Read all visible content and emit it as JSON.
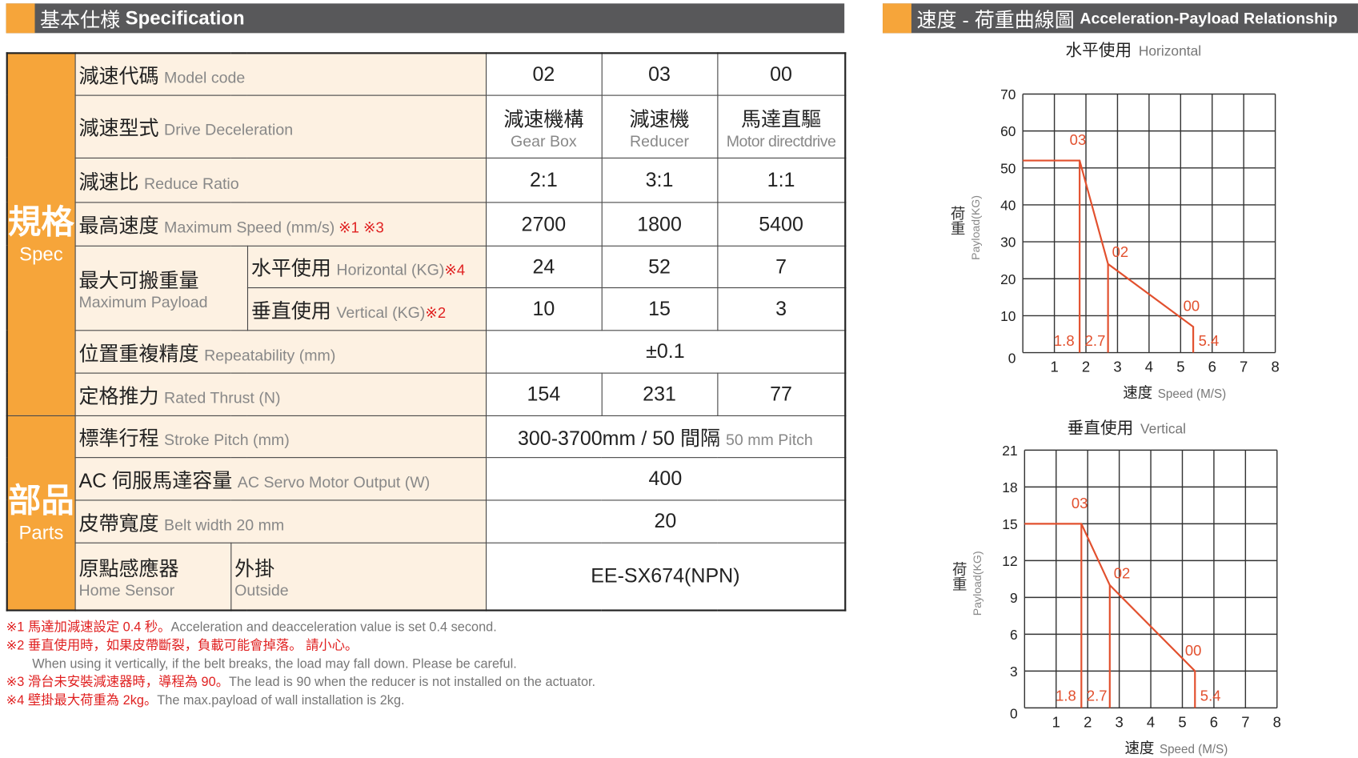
{
  "spec_header": {
    "zh": "基本仕様",
    "en": "Specification"
  },
  "chart_header": {
    "zh": "速度 - 荷重曲線圖",
    "en": "Acceleration-Payload Relationship"
  },
  "sections": {
    "spec": {
      "zh": "規格",
      "en": "Spec"
    },
    "parts": {
      "zh": "部品",
      "en": "Parts"
    }
  },
  "rows": {
    "model": {
      "zh": "減速代碼",
      "en": "Model code",
      "values": [
        "02",
        "03",
        "00"
      ]
    },
    "drive": {
      "zh": "減速型式",
      "en": "Drive Deceleration",
      "values": [
        {
          "zh": "減速機構",
          "en": "Gear Box"
        },
        {
          "zh": "減速機",
          "en": "Reducer"
        },
        {
          "zh": "馬達直驅",
          "en": "Motor directdrive"
        }
      ]
    },
    "ratio": {
      "zh": "減速比",
      "en": "Reduce Ratio",
      "values": [
        "2:1",
        "3:1",
        "1:1"
      ]
    },
    "speed": {
      "zh": "最高速度",
      "en": "Maximum Speed (mm/s)",
      "mark": "※1 ※3",
      "values": [
        "2700",
        "1800",
        "5400"
      ]
    },
    "payload": {
      "zh": "最大可搬重量",
      "en": "Maximum Payload",
      "horizontal": {
        "zh": "水平使用",
        "en": "Horizontal (KG)",
        "mark": "※4",
        "values": [
          "24",
          "52",
          "7"
        ]
      },
      "vertical": {
        "zh": "垂直使用",
        "en": "Vertical (KG)",
        "mark": "※2",
        "values": [
          "10",
          "15",
          "3"
        ]
      }
    },
    "repeat": {
      "zh": "位置重複精度",
      "en": "Repeatability (mm)",
      "value": "±0.1"
    },
    "thrust": {
      "zh": "定格推力",
      "en": "Rated Thrust (N)",
      "values": [
        "154",
        "231",
        "77"
      ]
    },
    "stroke": {
      "zh": "標準行程",
      "en": "Stroke Pitch (mm)",
      "value": "300-3700mm / 50 間隔",
      "value_en": "50 mm Pitch"
    },
    "motor": {
      "zh": "AC 伺服馬達容量",
      "en": "AC Servo Motor Output (W)",
      "value": "400"
    },
    "belt": {
      "zh": "皮帶寬度",
      "en": "Belt width 20 mm",
      "value": "20"
    },
    "sensor": {
      "zh": "原點感應器",
      "en": "Home Sensor",
      "type_zh": "外掛",
      "type_en": "Outside",
      "value": "EE-SX674(NPN)"
    }
  },
  "notes": [
    {
      "zh": "※1 馬達加減速設定 0.4 秒。",
      "en": "Acceleration and deacceleration value is set 0.4 second."
    },
    {
      "zh": "※2 垂直使用時，如果皮帶斷裂，負載可能會掉落。 請小心。",
      "en": ""
    },
    {
      "zh": "",
      "en": "When using it vertically, if the belt breaks, the load may fall down. Please be careful."
    },
    {
      "zh": "※3 滑台未安裝減速器時，導程為 90。",
      "en": "The lead is 90 when the reducer is not installed on the actuator."
    },
    {
      "zh": "※4 壁掛最大荷重為 2kg。",
      "en": "The max.payload of wall installation is 2kg."
    }
  ],
  "chart_data": [
    {
      "type": "line",
      "title": "水平使用",
      "title_en": "Horizontal",
      "ylabel": "荷重",
      "ylabel_en": "Payload(KG)",
      "xlabel": "速度",
      "xlabel_en": "Speed (M/S)",
      "xlim": [
        0,
        8
      ],
      "ylim": [
        0,
        70
      ],
      "xticks": [
        1,
        2,
        3,
        4,
        5,
        6,
        7,
        8
      ],
      "yticks": [
        0,
        10,
        20,
        30,
        40,
        50,
        60,
        70
      ],
      "grid": true,
      "points": [
        {
          "label": "03",
          "speed": 1.8,
          "payload": 52
        },
        {
          "label": "02",
          "speed": 2.7,
          "payload": 24
        },
        {
          "label": "00",
          "speed": 5.4,
          "payload": 7
        }
      ],
      "speed_labels": [
        "1.8",
        "2.7",
        "5.4"
      ],
      "color": "#e2502e"
    },
    {
      "type": "line",
      "title": "垂直使用",
      "title_en": "Vertical",
      "ylabel": "荷重",
      "ylabel_en": "Payload(KG)",
      "xlabel": "速度",
      "xlabel_en": "Speed (M/S)",
      "xlim": [
        0,
        8
      ],
      "ylim": [
        0,
        21
      ],
      "xticks": [
        1,
        2,
        3,
        4,
        5,
        6,
        7,
        8
      ],
      "yticks": [
        0,
        3,
        6,
        9,
        12,
        15,
        18,
        21
      ],
      "grid": true,
      "points": [
        {
          "label": "03",
          "speed": 1.8,
          "payload": 15
        },
        {
          "label": "02",
          "speed": 2.7,
          "payload": 10
        },
        {
          "label": "00",
          "speed": 5.4,
          "payload": 3
        }
      ],
      "speed_labels": [
        "1.8",
        "2.7",
        "5.4"
      ],
      "color": "#e2502e"
    }
  ]
}
